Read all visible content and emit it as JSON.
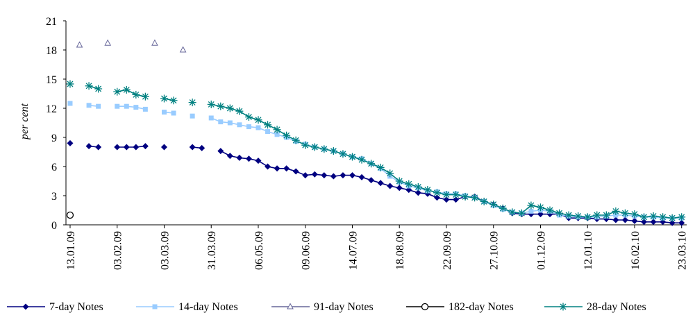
{
  "chart_data": {
    "type": "line",
    "y_label": "per cent",
    "categories": [
      "13.01.09",
      null,
      null,
      null,
      null,
      "03.02.09",
      null,
      null,
      null,
      null,
      "03.03.09",
      null,
      null,
      null,
      null,
      "31.03.09",
      null,
      null,
      null,
      null,
      "06.05.09",
      null,
      null,
      null,
      null,
      "09.06.09",
      null,
      null,
      null,
      null,
      "14.07.09",
      null,
      null,
      null,
      null,
      "18.08.09",
      null,
      null,
      null,
      null,
      "22.09.09",
      null,
      null,
      null,
      null,
      "27.10.09",
      null,
      null,
      null,
      null,
      "01.12.09",
      null,
      null,
      null,
      null,
      "12.01.10",
      null,
      null,
      null,
      null,
      "16.02.10",
      null,
      null,
      null,
      null,
      "23.03.10"
    ],
    "ylim": [
      0,
      21
    ],
    "yticks": [
      0,
      3,
      6,
      9,
      12,
      15,
      18,
      21
    ],
    "grid": false,
    "series": [
      {
        "name": "7-day Notes",
        "color": "#000080",
        "marker": "diamond",
        "values": [
          8.4,
          null,
          8.1,
          8.0,
          null,
          8.0,
          8.0,
          8.0,
          8.1,
          null,
          8.0,
          null,
          null,
          8.0,
          7.9,
          null,
          7.6,
          7.1,
          6.9,
          6.8,
          6.6,
          6.0,
          5.8,
          5.8,
          5.5,
          5.1,
          5.2,
          5.1,
          5.0,
          5.1,
          5.1,
          4.9,
          4.6,
          4.3,
          4.0,
          3.8,
          3.6,
          3.3,
          3.2,
          2.8,
          2.6,
          2.6,
          2.9,
          2.9,
          2.4,
          2.1,
          1.7,
          1.2,
          1.1,
          1.1,
          1.1,
          1.1,
          1.1,
          0.7,
          0.7,
          0.7,
          0.6,
          0.6,
          0.5,
          0.5,
          0.4,
          0.3,
          0.3,
          0.3,
          0.2,
          0.2
        ]
      },
      {
        "name": "14-day Notes",
        "color": "#99ccff",
        "marker": "square",
        "values": [
          12.5,
          null,
          12.3,
          12.2,
          null,
          12.2,
          12.2,
          12.1,
          11.9,
          null,
          11.6,
          11.5,
          null,
          11.2,
          null,
          11.0,
          10.6,
          10.5,
          10.3,
          10.1,
          10.0,
          9.6,
          9.3,
          9.0,
          8.6,
          8.3,
          8.0,
          7.8,
          7.6,
          7.3,
          7.0,
          6.8,
          6.3,
          5.8,
          5.0,
          4.4,
          4.0,
          3.8,
          3.5,
          3.4,
          3.2,
          3.2,
          3.0,
          2.8,
          2.4,
          2.0,
          1.6,
          1.3,
          1.2,
          1.4,
          1.5,
          1.4,
          1.0,
          0.9,
          0.8,
          0.8,
          0.8,
          0.9,
          1.0,
          1.0,
          0.9,
          0.8,
          0.8,
          0.7,
          0.7,
          0.7
        ]
      },
      {
        "name": "91-day Notes",
        "color": "#666699",
        "marker": "triangle",
        "values": [
          null,
          18.5,
          null,
          null,
          18.7,
          null,
          null,
          null,
          null,
          18.7,
          null,
          null,
          18.0,
          null,
          null,
          null,
          null,
          null,
          null,
          null,
          null,
          null,
          null,
          null,
          null,
          null,
          null,
          null,
          null,
          null,
          null,
          null,
          null,
          null,
          null,
          null,
          null,
          null,
          null,
          null,
          null,
          null,
          null,
          null,
          null,
          null,
          null,
          null,
          null,
          null,
          null,
          null,
          null,
          null,
          null,
          null,
          null,
          null,
          null,
          null,
          null,
          null,
          null,
          null,
          null,
          null
        ]
      },
      {
        "name": "182-day Notes",
        "color": "#000000",
        "marker": "circle",
        "values": [
          1.0,
          null,
          null,
          null,
          null,
          null,
          null,
          null,
          null,
          null,
          null,
          null,
          null,
          null,
          null,
          null,
          null,
          null,
          null,
          null,
          null,
          null,
          null,
          null,
          null,
          null,
          null,
          null,
          null,
          null,
          null,
          null,
          null,
          null,
          null,
          null,
          null,
          null,
          null,
          null,
          null,
          null,
          null,
          null,
          null,
          null,
          null,
          null,
          null,
          null,
          null,
          null,
          null,
          null,
          null,
          null,
          null,
          null,
          null,
          null,
          null,
          null,
          null,
          null,
          null,
          null
        ]
      },
      {
        "name": "28-day Notes",
        "color": "#008080",
        "marker": "asterisk",
        "values": [
          14.5,
          null,
          14.3,
          14.0,
          null,
          13.7,
          13.9,
          13.4,
          13.2,
          null,
          13.0,
          12.8,
          null,
          12.6,
          null,
          12.4,
          12.2,
          12.0,
          11.7,
          11.1,
          10.8,
          10.3,
          9.8,
          9.2,
          8.7,
          8.2,
          8.0,
          7.8,
          7.6,
          7.3,
          7.0,
          6.7,
          6.3,
          5.9,
          5.3,
          4.5,
          4.2,
          3.9,
          3.6,
          3.3,
          3.1,
          3.1,
          2.9,
          2.8,
          2.4,
          2.1,
          1.7,
          1.3,
          1.2,
          2.0,
          1.8,
          1.5,
          1.2,
          1.0,
          0.9,
          0.8,
          1.0,
          1.0,
          1.4,
          1.2,
          1.1,
          0.8,
          0.9,
          0.8,
          0.7,
          0.8
        ]
      }
    ]
  }
}
